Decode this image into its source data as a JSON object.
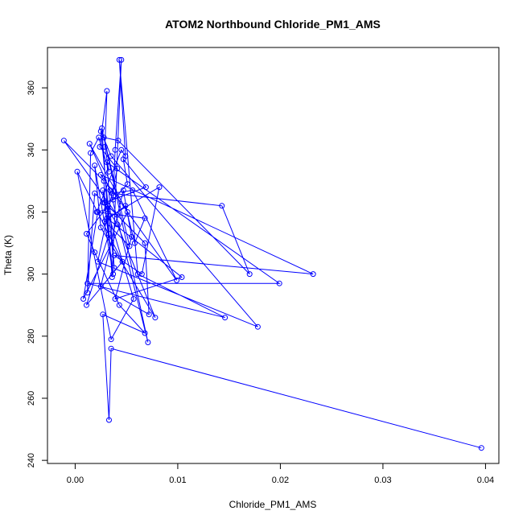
{
  "chart_data": {
    "type": "line",
    "title": "ATOM2 Northbound Chloride_PM1_AMS",
    "xlabel": "Chloride_PM1_AMS",
    "ylabel": "Theta (K)",
    "xlim": [
      -0.0027,
      0.0413
    ],
    "ylim": [
      239,
      373
    ],
    "x_ticks": [
      0.0,
      0.01,
      0.02,
      0.03,
      0.04
    ],
    "x_tick_labels": [
      "0.00",
      "0.01",
      "0.02",
      "0.03",
      "0.04"
    ],
    "y_ticks": [
      240,
      260,
      280,
      300,
      320,
      340,
      360
    ],
    "y_tick_labels": [
      "240",
      "260",
      "280",
      "300",
      "320",
      "340",
      "360"
    ],
    "grid": false,
    "color": "#0000ff",
    "series": [
      {
        "x": [
          0.0396,
          0.0035,
          0.0033,
          0.0027,
          0.0068,
          0.0043,
          0.0019,
          0.0011,
          0.0032,
          0.0068,
          0.0072,
          0.0025,
          0.0047,
          0.0055,
          0.0039,
          0.0104,
          0.0031,
          0.0082,
          0.0065,
          0.0038,
          0.0232,
          0.0025,
          0.0099,
          0.0056,
          0.0036,
          0.0143,
          0.017,
          0.0042,
          0.0028,
          0.0053,
          0.0029,
          0.0049,
          0.0058,
          0.0068,
          0.0021,
          0.0045,
          0.0049,
          0.0043,
          0.0061,
          0.0146,
          0.0012,
          0.0199,
          0.0031,
          0.0038,
          0.0025,
          0.0035,
          0.0178,
          0.0022,
          0.0041,
          0.0024,
          0.0031,
          0.0029,
          0.0033,
          0.0023,
          0.0015,
          0.0012,
          0.0019,
          0.0041,
          -0.0011,
          0.0028,
          0.0029,
          0.0069,
          0.0047,
          0.0051,
          0.0037,
          0.0039,
          0.0045,
          0.0036,
          0.0026,
          0.0071,
          0.0034,
          0.0014,
          0.0051,
          0.0008,
          0.0022,
          0.0031,
          0.0057,
          0.0035,
          0.0002,
          0.0046,
          0.0011,
          0.0033,
          0.0027,
          0.0037,
          0.0019,
          0.0025,
          0.0078,
          0.0041,
          0.0028
        ],
        "y": [
          244,
          276,
          253,
          287,
          281,
          290,
          307,
          313,
          322,
          310,
          287,
          296,
          327,
          312,
          292,
          299,
          318,
          328,
          300,
          306,
          300,
          332,
          298,
          327,
          326,
          322,
          300,
          343,
          344,
          309,
          317,
          322,
          310,
          318,
          320,
          340,
          338,
          369,
          300,
          286,
          297,
          297,
          336,
          302,
          346,
          338,
          283,
          304,
          334,
          341,
          359,
          341,
          333,
          344,
          339,
          294,
          326,
          319,
          343,
          330,
          323,
          328,
          337,
          329,
          324,
          340,
          369,
          299,
          347,
          278,
          327,
          342,
          320,
          292,
          320,
          321,
          292,
          279,
          333,
          304,
          290,
          313,
          327,
          300,
          335,
          315,
          286,
          316,
          323
        ]
      }
    ]
  }
}
